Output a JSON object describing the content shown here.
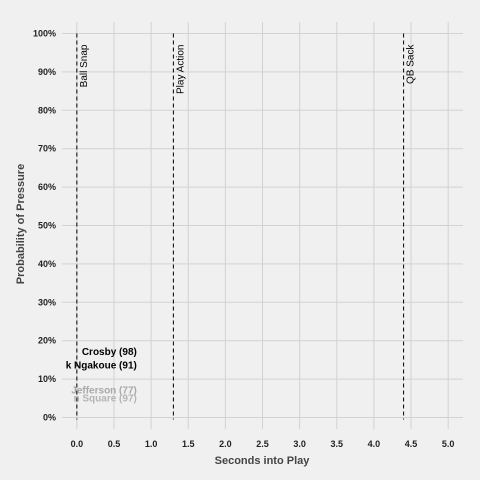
{
  "chart_data": {
    "type": "line",
    "xlabel": "Seconds into Play",
    "ylabel": "Probability of Pressure",
    "xlim": [
      -0.2,
      5.2
    ],
    "ylim": [
      -0.03,
      1.03
    ],
    "x_ticks": [
      "0.0",
      "0.5",
      "1.0",
      "1.5",
      "2.0",
      "2.5",
      "3.0",
      "3.5",
      "4.0",
      "4.5",
      "5.0"
    ],
    "x_tick_values": [
      0,
      0.5,
      1,
      1.5,
      2,
      2.5,
      3,
      3.5,
      4,
      4.5,
      5
    ],
    "y_ticks": [
      "0%",
      "10%",
      "20%",
      "30%",
      "40%",
      "50%",
      "60%",
      "70%",
      "80%",
      "90%",
      "100%"
    ],
    "y_tick_values": [
      0,
      0.1,
      0.2,
      0.3,
      0.4,
      0.5,
      0.6,
      0.7,
      0.8,
      0.9,
      1.0
    ],
    "grid": true,
    "events": [
      {
        "label": "Ball Snap",
        "x": 0.0
      },
      {
        "label": "Play Action",
        "x": 1.3
      },
      {
        "label": "QB Sack",
        "x": 4.4
      }
    ],
    "player_labels": [
      {
        "text": "Crosby (98)",
        "x": 0.0,
        "y": 0.17,
        "color": "#000000"
      },
      {
        "text": "k Ngakoue (91)",
        "x": 0.0,
        "y": 0.135,
        "color": "#000000"
      },
      {
        "text": "Jefferson (77)",
        "x": 0.0,
        "y": 0.07,
        "color": "#a8a8a8"
      },
      {
        "text": "n Square (97)",
        "x": 0.0,
        "y": 0.05,
        "color": "#b4b4b4"
      }
    ],
    "colors": {
      "background": "#f0f0f0",
      "grid": "#d2d2d2",
      "event_line": "#000000"
    }
  }
}
